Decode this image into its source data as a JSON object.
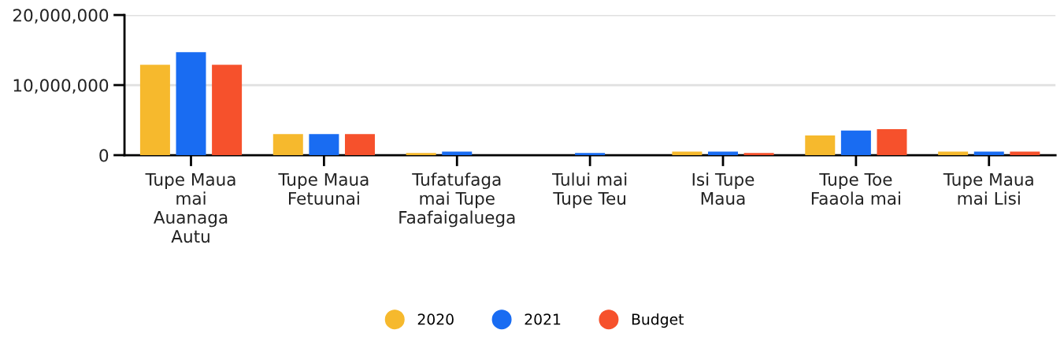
{
  "chart_data": {
    "type": "bar",
    "categories": [
      "Tupe Maua mai Auanaga Autu",
      "Tupe Maua Fetuunai",
      "Tufatufaga mai Tupe Faafaigaluega",
      "Tului mai Tupe Teu",
      "Isi Tupe Maua",
      "Tupe Toe Faaola mai",
      "Tupe Maua mai Lisi"
    ],
    "series": [
      {
        "name": "2020",
        "color": "#f6b92d",
        "values": [
          12900000,
          3000000,
          300000,
          0,
          500000,
          2800000,
          500000
        ]
      },
      {
        "name": "2021",
        "color": "#196cf2",
        "values": [
          14700000,
          3000000,
          500000,
          300000,
          500000,
          3500000,
          500000
        ]
      },
      {
        "name": "Budget",
        "color": "#f6512c",
        "values": [
          12900000,
          3000000,
          0,
          0,
          300000,
          3700000,
          500000
        ]
      }
    ],
    "ylim": [
      0,
      20000000
    ],
    "yticks": [
      0,
      {
        "value": 10000000,
        "label": "10,000,000"
      },
      {
        "value": 20000000,
        "label": "20,000,000"
      }
    ],
    "grid": "y",
    "legend": "bottom",
    "marker": "circle"
  }
}
